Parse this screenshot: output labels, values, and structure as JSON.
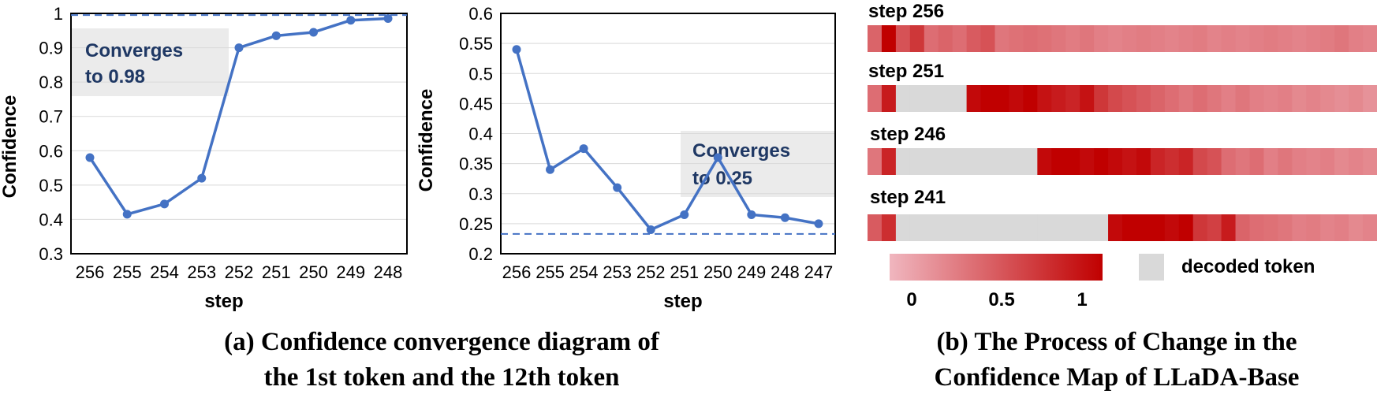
{
  "chart_data": [
    {
      "type": "line",
      "xlabel": "step",
      "ylabel": "Confidence",
      "categories": [
        "256",
        "255",
        "254",
        "253",
        "252",
        "251",
        "250",
        "249",
        "248"
      ],
      "values": [
        0.58,
        0.415,
        0.445,
        0.52,
        0.9,
        0.935,
        0.945,
        0.98,
        0.985
      ],
      "ylim": [
        0.3,
        1.0
      ],
      "yticks": [
        "0.3",
        "0.4",
        "0.5",
        "0.6",
        "0.7",
        "0.8",
        "0.9",
        "1"
      ],
      "reference_line": 0.995,
      "annotation": [
        "Converges",
        "to 0.98"
      ],
      "grid": true,
      "line_color": "#4472c4"
    },
    {
      "type": "line",
      "xlabel": "step",
      "ylabel": "Confidence",
      "categories": [
        "256",
        "255",
        "254",
        "253",
        "252",
        "251",
        "250",
        "249",
        "248",
        "247"
      ],
      "values": [
        0.54,
        0.34,
        0.375,
        0.31,
        0.24,
        0.265,
        0.36,
        0.265,
        0.26,
        0.25
      ],
      "ylim": [
        0.2,
        0.6
      ],
      "yticks": [
        "0.2",
        "0.25",
        "0.3",
        "0.35",
        "0.4",
        "0.45",
        "0.5",
        "0.55",
        "0.6"
      ],
      "reference_line": 0.233,
      "annotation": [
        "Converges",
        "to 0.25"
      ],
      "grid": true,
      "line_color": "#4472c4"
    },
    {
      "type": "heatmap",
      "rows": [
        {
          "label": "step 256",
          "cells": [
            0.45,
            1.0,
            0.55,
            0.7,
            0.4,
            0.45,
            0.4,
            0.5,
            0.55,
            0.35,
            0.38,
            0.4,
            0.38,
            0.35,
            0.32,
            0.35,
            0.3,
            0.28,
            0.3,
            0.32,
            0.3,
            0.28,
            0.3,
            0.32,
            0.28,
            0.3,
            0.28,
            0.3,
            0.32,
            0.3,
            0.28,
            0.3,
            0.32,
            0.35,
            0.3,
            0.28
          ]
        },
        {
          "label": "step 251",
          "cells": [
            0.4,
            0.85,
            null,
            null,
            null,
            null,
            null,
            0.95,
            1.0,
            1.0,
            0.95,
            1.0,
            0.9,
            0.85,
            0.8,
            0.9,
            0.7,
            0.6,
            0.55,
            0.5,
            0.45,
            0.4,
            0.35,
            0.4,
            0.35,
            0.3,
            0.35,
            0.3,
            0.28,
            0.3,
            0.25,
            0.28,
            0.25,
            0.22,
            0.25,
            0.2
          ]
        },
        {
          "label": "step 246",
          "cells": [
            0.35,
            0.8,
            null,
            null,
            null,
            null,
            null,
            null,
            null,
            null,
            null,
            null,
            0.95,
            1.0,
            1.0,
            0.95,
            1.0,
            0.95,
            0.9,
            0.95,
            0.8,
            0.75,
            0.8,
            0.6,
            0.55,
            0.4,
            0.35,
            0.4,
            0.3,
            0.35,
            0.3,
            0.28,
            0.3,
            0.25,
            0.28,
            0.25
          ]
        },
        {
          "label": "step 241",
          "cells": [
            0.5,
            0.75,
            null,
            null,
            null,
            null,
            null,
            null,
            null,
            null,
            null,
            null,
            null,
            null,
            null,
            null,
            null,
            0.95,
            1.0,
            1.0,
            1.0,
            0.95,
            1.0,
            0.7,
            0.65,
            0.85,
            0.45,
            0.4,
            0.38,
            0.35,
            0.3,
            0.32,
            0.28,
            0.3,
            0.25,
            0.28
          ]
        }
      ],
      "colorbar": {
        "ticks": [
          "0",
          "0.5",
          "1"
        ],
        "min_color": "#f0b6bf",
        "max_color": "#c00000"
      },
      "null_color": "#d9d9d9",
      "null_label": "decoded token"
    }
  ],
  "captions": {
    "a": [
      "(a) Confidence convergence diagram of",
      "the 1st token and the 12th token"
    ],
    "b": [
      "(b) The Process of Change in the",
      "Confidence Map of LLaDA-Base"
    ]
  }
}
